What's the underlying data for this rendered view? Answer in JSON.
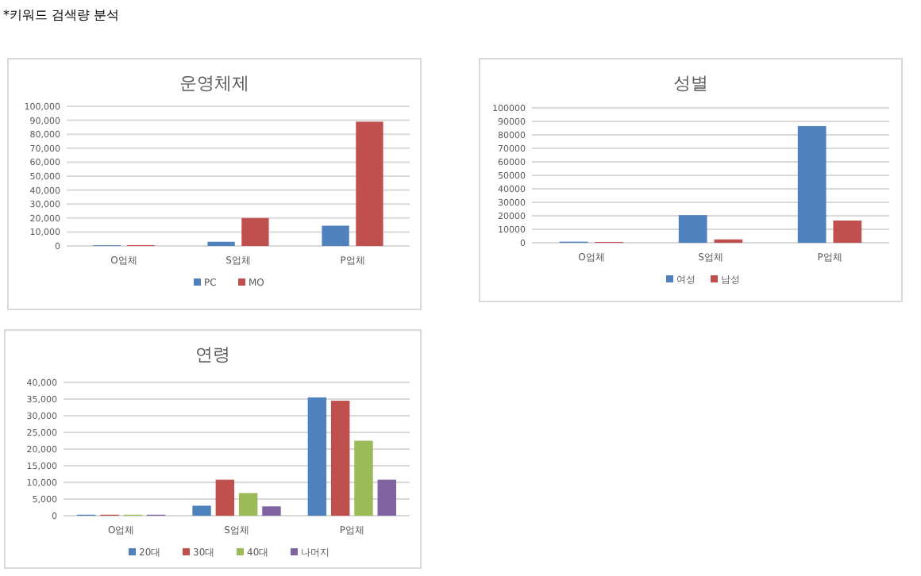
{
  "chart_data": [
    {
      "type": "bar",
      "title": "운영체제",
      "categories": [
        "O업체",
        "S업체",
        "P업체"
      ],
      "series": [
        {
          "name": "PC",
          "color": "#4f81bd",
          "values": [
            500,
            3000,
            14500
          ]
        },
        {
          "name": "MO",
          "color": "#c0504d",
          "values": [
            600,
            20000,
            89000
          ]
        }
      ],
      "ylim": [
        0,
        100000
      ],
      "yticks": [
        {
          "value": 0,
          "label": "0"
        },
        {
          "value": 10000,
          "label": "10,000"
        },
        {
          "value": 20000,
          "label": "20,000"
        },
        {
          "value": 30000,
          "label": "30,000"
        },
        {
          "value": 40000,
          "label": "40,000"
        },
        {
          "value": 50000,
          "label": "50,000"
        },
        {
          "value": 60000,
          "label": "60,000"
        },
        {
          "value": 70000,
          "label": "70,000"
        },
        {
          "value": 80000,
          "label": "80,000"
        },
        {
          "value": 90000,
          "label": "90,000"
        },
        {
          "value": 100000,
          "label": "100,000"
        }
      ],
      "grid": "y",
      "legend": "bottom",
      "annotations": [
        "*키워드 검색량 분석"
      ]
    },
    {
      "type": "bar",
      "title": "성별",
      "categories": [
        "O업체",
        "S업체",
        "P업체"
      ],
      "series": [
        {
          "name": "여성",
          "color": "#4f81bd",
          "values": [
            800,
            20500,
            86500
          ]
        },
        {
          "name": "남성",
          "color": "#c0504d",
          "values": [
            600,
            2500,
            16500
          ]
        }
      ],
      "ylim": [
        0,
        100000
      ],
      "yticks": [
        0,
        10000,
        20000,
        30000,
        40000,
        50000,
        60000,
        70000,
        80000,
        90000,
        100000
      ],
      "grid": "y",
      "legend": "bottom"
    },
    {
      "type": "bar",
      "title": "연령",
      "categories": [
        "O업체",
        "S업체",
        "P업체"
      ],
      "series": [
        {
          "name": "20대",
          "color": "#4f81bd",
          "values": [
            300,
            3000,
            35500
          ]
        },
        {
          "name": "30대",
          "color": "#c0504d",
          "values": [
            300,
            10800,
            34500
          ]
        },
        {
          "name": "40대",
          "color": "#9bbb59",
          "values": [
            300,
            6800,
            22500
          ]
        },
        {
          "name": "나머지",
          "color": "#8064a2",
          "values": [
            300,
            2800,
            10800
          ]
        }
      ],
      "ylim": [
        0,
        40000
      ],
      "yticks": [
        {
          "value": 0,
          "label": "0"
        },
        {
          "value": 5000,
          "label": "5,000"
        },
        {
          "value": 10000,
          "label": "10,000"
        },
        {
          "value": 15000,
          "label": "15,000"
        },
        {
          "value": 20000,
          "label": "20,000"
        },
        {
          "value": 25000,
          "label": "25,000"
        },
        {
          "value": 30000,
          "label": "30,000"
        },
        {
          "value": 35000,
          "label": "35,000"
        },
        {
          "value": 40000,
          "label": "40,000"
        }
      ],
      "grid": "y",
      "legend": "bottom"
    }
  ]
}
